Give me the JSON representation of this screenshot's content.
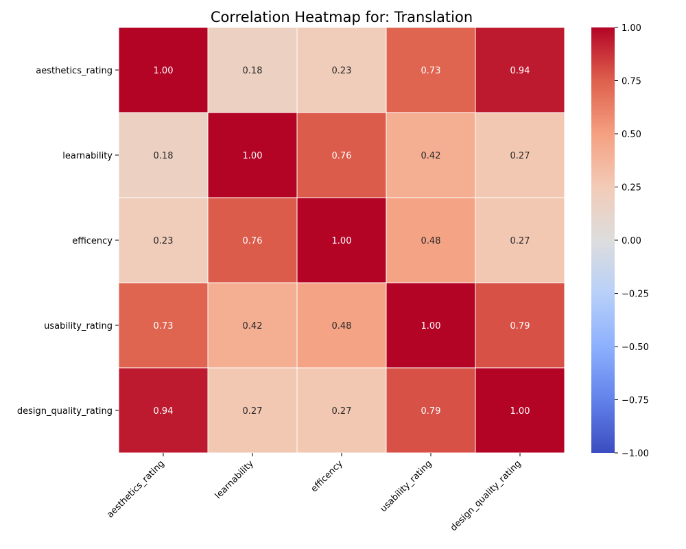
{
  "chart_data": {
    "type": "heatmap",
    "title": "Correlation Heatmap for: Translation",
    "rows": [
      "aesthetics_rating",
      "learnability",
      "efficency",
      "usability_rating",
      "design_quality_rating"
    ],
    "columns": [
      "aesthetics_rating",
      "learnability",
      "efficency",
      "usability_rating",
      "design_quality_rating"
    ],
    "values": [
      [
        1.0,
        0.18,
        0.23,
        0.73,
        0.94
      ],
      [
        0.18,
        1.0,
        0.76,
        0.42,
        0.27
      ],
      [
        0.23,
        0.76,
        1.0,
        0.48,
        0.27
      ],
      [
        0.73,
        0.42,
        0.48,
        1.0,
        0.79
      ],
      [
        0.94,
        0.27,
        0.27,
        0.79,
        1.0
      ]
    ],
    "value_format": "0.00",
    "colormap": "coolwarm",
    "vmin": -1.0,
    "vmax": 1.0,
    "colorbar_ticks": [
      "1.00",
      "0.75",
      "0.50",
      "0.25",
      "0.00",
      "−0.25",
      "−0.50",
      "−0.75",
      "−1.00"
    ],
    "colorbar_tick_values": [
      1.0,
      0.75,
      0.5,
      0.25,
      0.0,
      -0.25,
      -0.5,
      -0.75,
      -1.0
    ],
    "colors": {
      "low": "#3b4cc0",
      "mid": "#dddddd",
      "high": "#b40426",
      "cell_border": "#ffffff"
    },
    "legend_position": "right"
  }
}
